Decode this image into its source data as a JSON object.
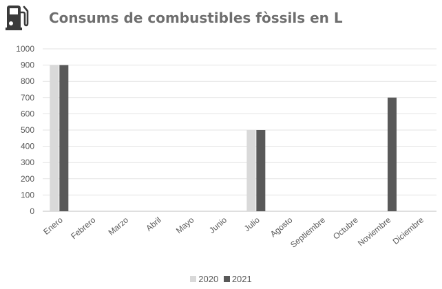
{
  "header": {
    "title": "Consums de combustibles fòssils en L",
    "icon": "fuel-pump-icon"
  },
  "chart_data": {
    "type": "bar",
    "title": "Consums de combustibles fòssils en L",
    "xlabel": "",
    "ylabel": "",
    "ylim": [
      0,
      1000
    ],
    "yticks": [
      0,
      100,
      200,
      300,
      400,
      500,
      600,
      700,
      800,
      900,
      1000
    ],
    "grid": true,
    "legend_position": "bottom",
    "categories": [
      "Enero",
      "Febrero",
      "Marzo",
      "Abril",
      "Mayo",
      "Junio",
      "Julio",
      "Agosto",
      "Septiembre",
      "Octubre",
      "Noviembre",
      "Diciembre"
    ],
    "series": [
      {
        "name": "2020",
        "color": "#d9d9d9",
        "values": [
          900,
          0,
          0,
          0,
          0,
          0,
          500,
          0,
          0,
          0,
          0,
          0
        ]
      },
      {
        "name": "2021",
        "color": "#595959",
        "values": [
          900,
          0,
          0,
          0,
          0,
          0,
          500,
          0,
          0,
          0,
          700,
          0
        ]
      }
    ]
  }
}
